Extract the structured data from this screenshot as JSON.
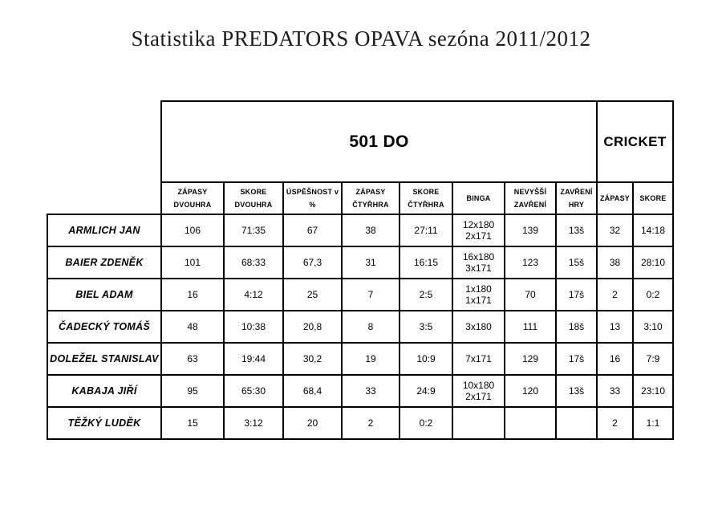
{
  "title": "Statistika PREDATORS OPAVA sezóna 2011/2012",
  "table": {
    "section_headers": {
      "do": "501 DO",
      "cricket": "CRICKET"
    },
    "columns": [
      {
        "line1": "ZÁPASY",
        "line2": "DVOUHRA"
      },
      {
        "line1": "SKORE",
        "line2": "DVOUHRA"
      },
      {
        "line1": "ÚSPĚŠNOST v",
        "line2": "%"
      },
      {
        "line1": "ZÁPASY",
        "line2": "ČTYŘHRA"
      },
      {
        "line1": "SKORE",
        "line2": "ČTYŘHRA"
      },
      {
        "line1": "BINGA",
        "line2": ""
      },
      {
        "line1": "NEVYŠŠÍ",
        "line2": "ZAVŘENÍ"
      },
      {
        "line1": "ZAVŘENÍ",
        "line2": "HRY"
      },
      {
        "line1": "ZÁPASY",
        "line2": ""
      },
      {
        "line1": "SKORE",
        "line2": ""
      }
    ],
    "rows": [
      {
        "name": "ARMLICH JAN",
        "zapasy_dvouhra": "106",
        "skore_dvouhra": "71:35",
        "uspesnost": "67",
        "zapasy_ctyrhra": "38",
        "skore_ctyrhra": "27:11",
        "binga_line1": "12x180",
        "binga_line2": "2x171",
        "nevyssi_zavreni": "139",
        "zavreni_hry": "13š",
        "cricket_zapasy": "32",
        "cricket_skore": "14:18"
      },
      {
        "name": "BAIER ZDENĚK",
        "zapasy_dvouhra": "101",
        "skore_dvouhra": "68:33",
        "uspesnost": "67,3",
        "zapasy_ctyrhra": "31",
        "skore_ctyrhra": "16:15",
        "binga_line1": "16x180",
        "binga_line2": "3x171",
        "nevyssi_zavreni": "123",
        "zavreni_hry": "15š",
        "cricket_zapasy": "38",
        "cricket_skore": "28:10"
      },
      {
        "name": "BIEL ADAM",
        "zapasy_dvouhra": "16",
        "skore_dvouhra": "4:12",
        "uspesnost": "25",
        "zapasy_ctyrhra": "7",
        "skore_ctyrhra": "2:5",
        "binga_line1": "1x180",
        "binga_line2": "1x171",
        "nevyssi_zavreni": "70",
        "zavreni_hry": "17š",
        "cricket_zapasy": "2",
        "cricket_skore": "0:2"
      },
      {
        "name": "ČADECKÝ TOMÁŠ",
        "zapasy_dvouhra": "48",
        "skore_dvouhra": "10:38",
        "uspesnost": "20,8",
        "zapasy_ctyrhra": "8",
        "skore_ctyrhra": "3:5",
        "binga_line1": "3x180",
        "binga_line2": "",
        "nevyssi_zavreni": "111",
        "zavreni_hry": "18š",
        "cricket_zapasy": "13",
        "cricket_skore": "3:10"
      },
      {
        "name": "DOLEŽEL STANISLAV",
        "zapasy_dvouhra": "63",
        "skore_dvouhra": "19:44",
        "uspesnost": "30,2",
        "zapasy_ctyrhra": "19",
        "skore_ctyrhra": "10:9",
        "binga_line1": "7x171",
        "binga_line2": "",
        "nevyssi_zavreni": "129",
        "zavreni_hry": "17š",
        "cricket_zapasy": "16",
        "cricket_skore": "7:9"
      },
      {
        "name": "KABAJA JIŘÍ",
        "zapasy_dvouhra": "95",
        "skore_dvouhra": "65:30",
        "uspesnost": "68,4",
        "zapasy_ctyrhra": "33",
        "skore_ctyrhra": "24:9",
        "binga_line1": "10x180",
        "binga_line2": "2x171",
        "nevyssi_zavreni": "120",
        "zavreni_hry": "13š",
        "cricket_zapasy": "33",
        "cricket_skore": "23:10"
      },
      {
        "name": "TĚŽKÝ LUDĚK",
        "zapasy_dvouhra": "15",
        "skore_dvouhra": "3:12",
        "uspesnost": "20",
        "zapasy_ctyrhra": "2",
        "skore_ctyrhra": "0:2",
        "binga_line1": "",
        "binga_line2": "",
        "nevyssi_zavreni": "",
        "zavreni_hry": "",
        "cricket_zapasy": "2",
        "cricket_skore": "1:1"
      }
    ]
  },
  "colors": {
    "background": "#ffffff",
    "border": "#000000",
    "text": "#000000"
  }
}
